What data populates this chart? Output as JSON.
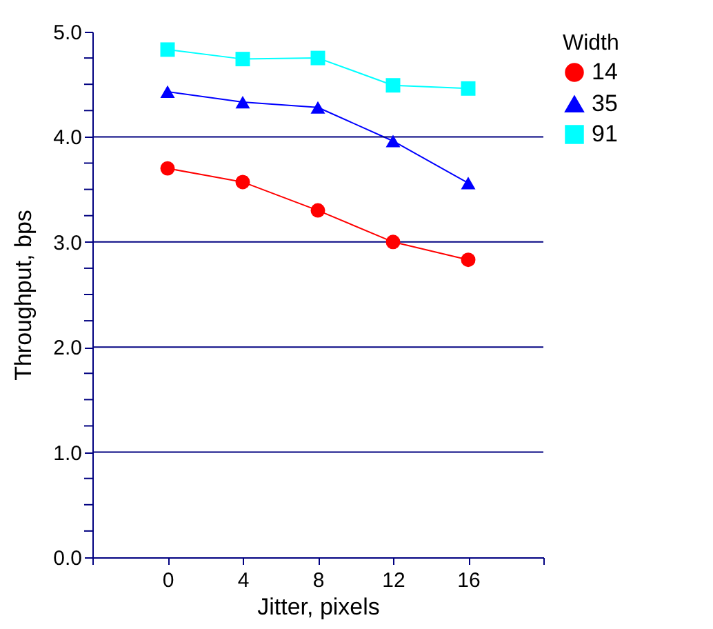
{
  "chart_data": {
    "type": "line",
    "xlabel": "Jitter, pixels",
    "ylabel": "Throughput, bps",
    "legend_title": "Width",
    "legend": "top right",
    "grid": "y",
    "line_style": "solid",
    "x": [
      0,
      4,
      8,
      12,
      16
    ],
    "xlim": [
      -4,
      20
    ],
    "xticks": [
      {
        "value": -4,
        "label": null
      },
      0,
      4,
      8,
      12,
      16,
      {
        "value": 20,
        "label": null
      }
    ],
    "ylim": [
      0,
      5
    ],
    "yticks": [
      {
        "value": 0,
        "label": "0.0"
      },
      {
        "value": 0.25,
        "label": null
      },
      {
        "value": 0.5,
        "label": null
      },
      {
        "value": 0.75,
        "label": null
      },
      {
        "value": 1,
        "label": "1.0"
      },
      {
        "value": 1.25,
        "label": null
      },
      {
        "value": 1.5,
        "label": null
      },
      {
        "value": 1.75,
        "label": null
      },
      {
        "value": 2,
        "label": "2.0"
      },
      {
        "value": 2.25,
        "label": null
      },
      {
        "value": 2.5,
        "label": null
      },
      {
        "value": 2.75,
        "label": null
      },
      {
        "value": 3,
        "label": "3.0"
      },
      {
        "value": 3.25,
        "label": null
      },
      {
        "value": 3.5,
        "label": null
      },
      {
        "value": 3.75,
        "label": null
      },
      {
        "value": 4,
        "label": "4.0"
      },
      {
        "value": 4.25,
        "label": null
      },
      {
        "value": 4.5,
        "label": null
      },
      {
        "value": 4.75,
        "label": null
      },
      {
        "value": 5,
        "label": "5.0"
      }
    ],
    "series": [
      {
        "name": "14",
        "color": "#ff0000",
        "marker": "circle",
        "values": [
          3.7,
          3.57,
          3.3,
          3.0,
          2.83
        ]
      },
      {
        "name": "35",
        "color": "#0000ff",
        "marker": "triangle",
        "values": [
          4.43,
          4.33,
          4.28,
          3.96,
          3.56
        ]
      },
      {
        "name": "91",
        "color": "#00ffff",
        "marker": "square",
        "values": [
          4.83,
          4.74,
          4.75,
          4.49,
          4.46
        ]
      }
    ]
  }
}
